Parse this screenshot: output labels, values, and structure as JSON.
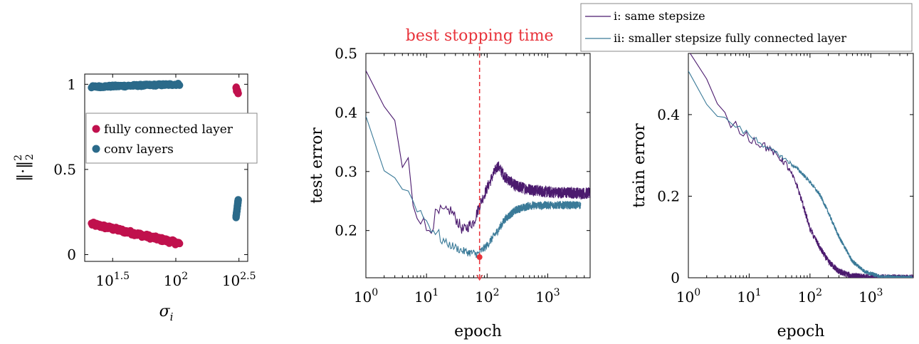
{
  "colors": {
    "fully_connected": "#c0114d",
    "conv": "#2b6a8a",
    "same_stepsize": "#4b1a6e",
    "smaller_stepsize": "#3a7a98",
    "best_stop": "#e8323a",
    "axis": "#000000"
  },
  "chart_data": [
    {
      "id": "scatter",
      "type": "scatter",
      "xscale": "log",
      "xlim": [
        19,
        371
      ],
      "ylim": [
        -0.04,
        1.06
      ],
      "xlabel": "σ_i",
      "ylabel": "‖·‖₂²",
      "xticks": [
        {
          "value": 31.62,
          "base": "10",
          "exp": "1.5"
        },
        {
          "value": 100,
          "base": "10",
          "exp": "2"
        },
        {
          "value": 316.2,
          "base": "10",
          "exp": "2.5"
        }
      ],
      "yticks": [
        {
          "value": 0,
          "label": "0"
        },
        {
          "value": 0.5,
          "label": "0.5"
        },
        {
          "value": 1,
          "label": "1"
        }
      ],
      "legend": {
        "position": "upper-middle",
        "entries": [
          {
            "label": "fully connected layer",
            "series": "fully_connected"
          },
          {
            "label": "conv layers",
            "series": "conv"
          }
        ]
      },
      "series": [
        {
          "name": "fully connected layer",
          "key": "fully_connected",
          "clusters": [
            {
              "xmin": 21.5,
              "xmax": 107,
              "y0": 0.18,
              "y1": 0.065,
              "spread": 0.012,
              "n": 130
            },
            {
              "xmin": 300,
              "xmax": 312,
              "y0": 0.975,
              "y1": 0.95,
              "spread": 0.012,
              "n": 14
            }
          ]
        },
        {
          "name": "conv layers",
          "key": "conv",
          "clusters": [
            {
              "xmin": 21.5,
              "xmax": 107,
              "y0": 0.985,
              "y1": 1.0,
              "spread": 0.006,
              "n": 130
            },
            {
              "xmin": 300,
              "xmax": 312,
              "y0": 0.22,
              "y1": 0.32,
              "spread": 0.005,
              "n": 30
            }
          ]
        }
      ]
    },
    {
      "id": "test",
      "type": "line",
      "xscale": "log",
      "xlim": [
        1,
        5000
      ],
      "ylim": [
        0.12,
        0.5
      ],
      "xlabel": "epoch",
      "ylabel": "test error",
      "xticks": [
        {
          "value": 1,
          "base": "10",
          "exp": "0"
        },
        {
          "value": 10,
          "base": "10",
          "exp": "1"
        },
        {
          "value": 100,
          "base": "10",
          "exp": "2"
        },
        {
          "value": 1000,
          "base": "10",
          "exp": "3"
        }
      ],
      "yticks": [
        {
          "value": 0.2,
          "label": "0.2"
        },
        {
          "value": 0.3,
          "label": "0.3"
        },
        {
          "value": 0.4,
          "label": "0.4"
        },
        {
          "value": 0.5,
          "label": "0.5"
        }
      ],
      "annotation": {
        "label": "best stopping time",
        "epoch": 75,
        "error": 0.155
      },
      "series": [
        {
          "name": "i: same stepsize",
          "key": "same_stepsize",
          "anchors": [
            [
              1,
              0.47
            ],
            [
              2,
              0.41
            ],
            [
              3,
              0.38
            ],
            [
              4,
              0.3
            ],
            [
              5,
              0.33
            ],
            [
              6,
              0.25
            ],
            [
              10,
              0.2
            ],
            [
              15,
              0.225
            ],
            [
              25,
              0.235
            ],
            [
              40,
              0.2
            ],
            [
              60,
              0.215
            ],
            [
              80,
              0.25
            ],
            [
              120,
              0.29
            ],
            [
              150,
              0.31
            ],
            [
              200,
              0.29
            ],
            [
              300,
              0.275
            ],
            [
              500,
              0.27
            ],
            [
              1000,
              0.265
            ],
            [
              5000,
              0.263
            ]
          ],
          "noise": 0.01
        },
        {
          "name": "ii: smaller stepsize fully connected layer",
          "key": "smaller_stepsize",
          "anchors": [
            [
              1,
              0.39
            ],
            [
              2,
              0.31
            ],
            [
              3,
              0.285
            ],
            [
              5,
              0.265
            ],
            [
              10,
              0.215
            ],
            [
              20,
              0.18
            ],
            [
              40,
              0.165
            ],
            [
              70,
              0.16
            ],
            [
              100,
              0.175
            ],
            [
              150,
              0.2
            ],
            [
              200,
              0.22
            ],
            [
              300,
              0.235
            ],
            [
              500,
              0.242
            ],
            [
              1000,
              0.243
            ],
            [
              3500,
              0.243
            ]
          ],
          "noise": 0.007
        }
      ]
    },
    {
      "id": "train",
      "type": "line",
      "xscale": "log",
      "xlim": [
        1,
        5000
      ],
      "ylim": [
        0,
        0.55
      ],
      "xlabel": "epoch",
      "ylabel": "train error",
      "xticks": [
        {
          "value": 1,
          "base": "10",
          "exp": "0"
        },
        {
          "value": 10,
          "base": "10",
          "exp": "1"
        },
        {
          "value": 100,
          "base": "10",
          "exp": "2"
        },
        {
          "value": 1000,
          "base": "10",
          "exp": "3"
        }
      ],
      "yticks": [
        {
          "value": 0,
          "label": "0"
        },
        {
          "value": 0.2,
          "label": "0.2"
        },
        {
          "value": 0.4,
          "label": "0.4"
        }
      ],
      "legend": {
        "position": "top-right",
        "entries": [
          {
            "label": "i: same stepsize",
            "series": "same_stepsize"
          },
          {
            "label": "ii: smaller stepsize fully connected layer",
            "series": "smaller_stepsize"
          }
        ]
      },
      "series": [
        {
          "name": "i: same stepsize",
          "key": "same_stepsize",
          "anchors": [
            [
              1,
              0.55
            ],
            [
              2,
              0.48
            ],
            [
              3,
              0.42
            ],
            [
              5,
              0.38
            ],
            [
              10,
              0.345
            ],
            [
              20,
              0.32
            ],
            [
              40,
              0.28
            ],
            [
              60,
              0.23
            ],
            [
              80,
              0.17
            ],
            [
              100,
              0.12
            ],
            [
              150,
              0.07
            ],
            [
              200,
              0.04
            ],
            [
              300,
              0.015
            ],
            [
              500,
              0.004
            ],
            [
              1000,
              0.001
            ],
            [
              5000,
              0.0
            ]
          ],
          "noise": 0.008
        },
        {
          "name": "ii: smaller stepsize fully connected layer",
          "key": "smaller_stepsize",
          "anchors": [
            [
              1,
              0.5
            ],
            [
              2,
              0.43
            ],
            [
              3,
              0.4
            ],
            [
              5,
              0.38
            ],
            [
              10,
              0.35
            ],
            [
              20,
              0.32
            ],
            [
              40,
              0.29
            ],
            [
              70,
              0.26
            ],
            [
              100,
              0.235
            ],
            [
              150,
              0.2
            ],
            [
              200,
              0.16
            ],
            [
              300,
              0.1
            ],
            [
              500,
              0.04
            ],
            [
              800,
              0.015
            ],
            [
              1500,
              0.002
            ],
            [
              5000,
              0.0
            ]
          ],
          "noise": 0.005
        }
      ]
    }
  ]
}
